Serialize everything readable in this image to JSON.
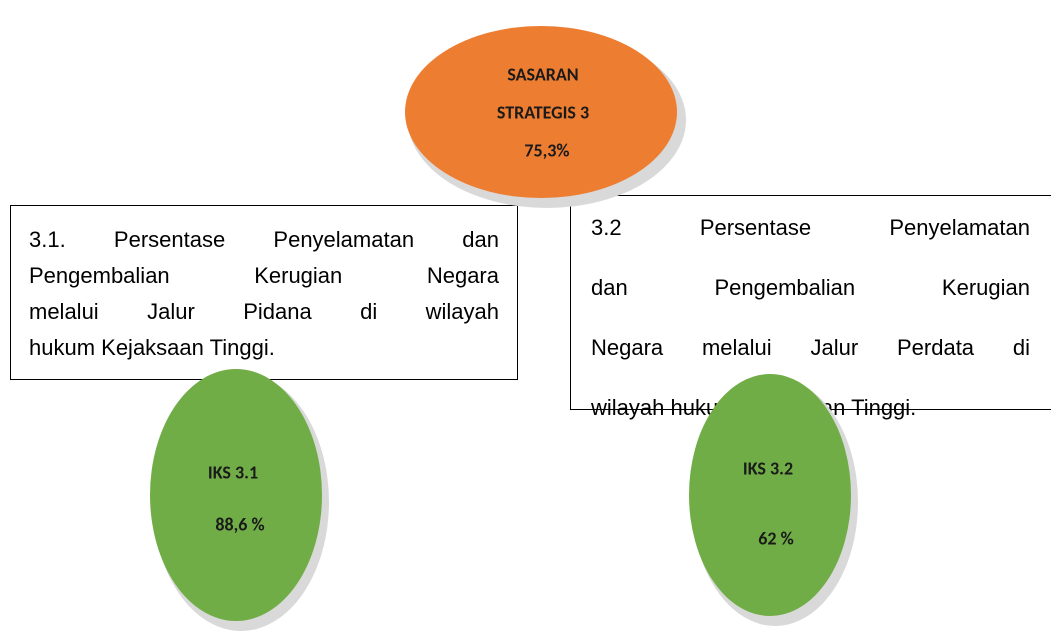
{
  "goal": {
    "lines": [
      "SASARAN",
      "STRATEGIS 3",
      "75,3%"
    ]
  },
  "indicators": [
    {
      "description": [
        "3.1. Persentase Penyelamatan dan",
        "Pengembalian Kerugian Negara",
        "melalui Jalur Pidana di wilayah",
        "hukum Kejaksaan Tinggi."
      ],
      "label": "IKS 3.1",
      "value": "88,6 %"
    },
    {
      "description": [
        "3.2 Persentase Penyelamatan",
        "dan Pengembalian Kerugian",
        "Negara melalui Jalur Perdata di",
        "wilayah hukum Kejaksaan Tinggi."
      ],
      "label": "IKS 3.2",
      "value": "62 %"
    }
  ]
}
